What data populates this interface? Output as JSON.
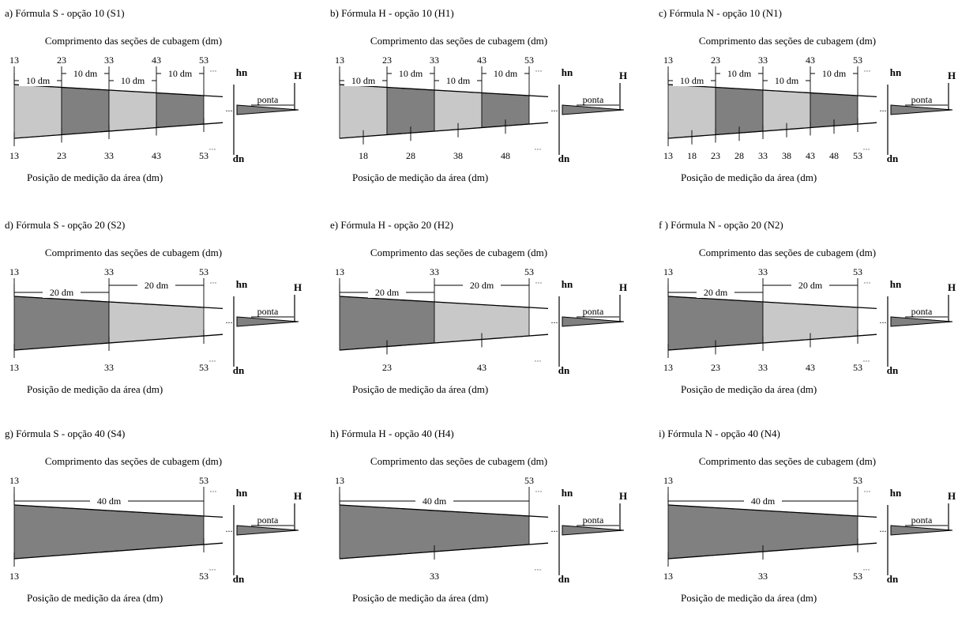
{
  "common": {
    "top_label": "Comprimento das seções de cubagem (dm)",
    "bottom_label": "Posição de medição da área (dm)",
    "hn": "hn",
    "H": "H",
    "dn": "dn",
    "ponta": "ponta",
    "ellipsis": "...",
    "dots_small": "···"
  },
  "colors": {
    "light": "#c8c8c8",
    "dark": "#808080",
    "line": "#000000"
  },
  "panels": [
    {
      "title": "a) Fórmula S - opção 10  (S1)",
      "top_ticks": [
        "13",
        "23",
        "33",
        "43",
        "53"
      ],
      "seg_labels": [
        "10 dm",
        "10 dm",
        "10 dm",
        "10 dm"
      ],
      "fills": [
        "light",
        "dark",
        "light",
        "dark"
      ],
      "bottom_labels": [
        "13",
        "23",
        "33",
        "43",
        "53"
      ]
    },
    {
      "title": "b) Fórmula H - opção 10  (H1)",
      "top_ticks": [
        "13",
        "23",
        "33",
        "43",
        "53"
      ],
      "seg_labels": [
        "10 dm",
        "10 dm",
        "10 dm",
        "10 dm"
      ],
      "fills": [
        "light",
        "dark",
        "light",
        "dark"
      ],
      "bottom_labels": [
        "18",
        "28",
        "38",
        "48"
      ]
    },
    {
      "title": "c) Fórmula N - opção 10  (N1)",
      "top_ticks": [
        "13",
        "23",
        "33",
        "43",
        "53"
      ],
      "seg_labels": [
        "10 dm",
        "10 dm",
        "10 dm",
        "10 dm"
      ],
      "fills": [
        "light",
        "dark",
        "light",
        "dark"
      ],
      "bottom_labels": [
        "13",
        "18",
        "23",
        "28",
        "33",
        "38",
        "43",
        "48",
        "53"
      ]
    },
    {
      "title": "d)  Fórmula S - opção 20  (S2)",
      "top_ticks": [
        "13",
        "33",
        "53"
      ],
      "seg_labels": [
        "20 dm",
        "20 dm"
      ],
      "fills": [
        "dark",
        "light"
      ],
      "bottom_labels": [
        "13",
        "33",
        "53"
      ]
    },
    {
      "title": "e)  Fórmula H - opção 20  (H2)",
      "top_ticks": [
        "13",
        "33",
        "53"
      ],
      "seg_labels": [
        "20 dm",
        "20 dm"
      ],
      "fills": [
        "dark",
        "light"
      ],
      "bottom_labels": [
        "23",
        "43"
      ]
    },
    {
      "title": "f )  Fórmula N - opção 20  (N2)",
      "top_ticks": [
        "13",
        "33",
        "53"
      ],
      "seg_labels": [
        "20 dm",
        "20 dm"
      ],
      "fills": [
        "dark",
        "light"
      ],
      "bottom_labels": [
        "13",
        "23",
        "33",
        "43",
        "53"
      ]
    },
    {
      "title": "g) Fórmula S - opção  40  (S4)",
      "top_ticks": [
        "13",
        "53"
      ],
      "seg_labels": [
        "40 dm"
      ],
      "fills": [
        "dark"
      ],
      "bottom_labels": [
        "13",
        "53"
      ]
    },
    {
      "title": "h)  Fórmula H - opção  40  (H4)",
      "top_ticks": [
        "13",
        "53"
      ],
      "seg_labels": [
        "40 dm"
      ],
      "fills": [
        "dark"
      ],
      "bottom_labels": [
        "33"
      ]
    },
    {
      "title": "i)  Fórmula N - opção  40  (N4)",
      "top_ticks": [
        "13",
        "53"
      ],
      "seg_labels": [
        "40 dm"
      ],
      "fills": [
        "dark"
      ],
      "bottom_labels": [
        "13",
        "33",
        "53"
      ]
    }
  ]
}
